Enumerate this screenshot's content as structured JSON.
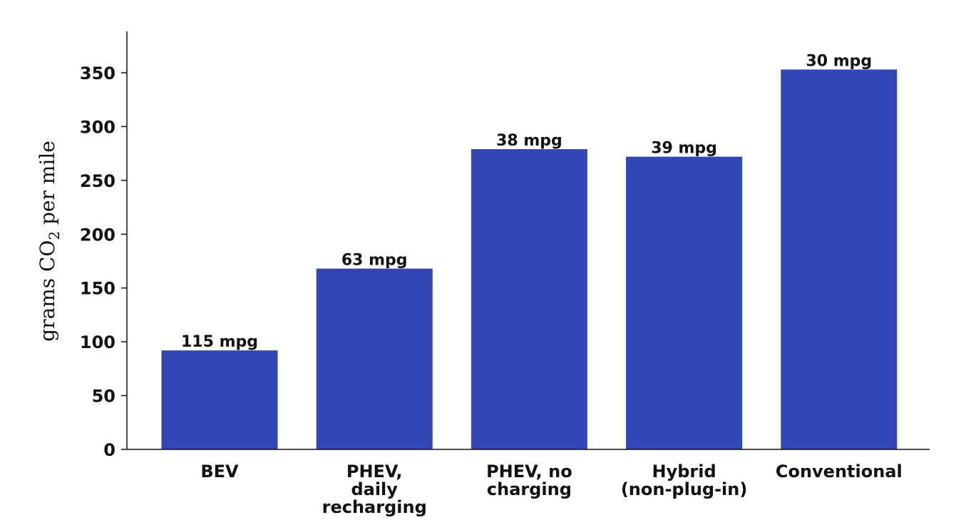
{
  "chart_data": {
    "type": "bar",
    "title": "",
    "xlabel": "",
    "ylabel": {
      "prefix": "grams CO",
      "subscript": "2",
      "suffix": " per mile"
    },
    "ylim": [
      0,
      385
    ],
    "yticks": [
      "0",
      "50",
      "100",
      "150",
      "200",
      "250",
      "300",
      "350"
    ],
    "grid": false,
    "categories": [
      [
        "BEV"
      ],
      [
        "PHEV,",
        "daily",
        "recharging"
      ],
      [
        "PHEV, no",
        "charging"
      ],
      [
        "Hybrid",
        "(non-plug-in)"
      ],
      [
        "Conventional"
      ]
    ],
    "values": [
      92,
      168,
      279,
      272,
      353
    ],
    "data_labels": [
      "115 mpg",
      "63 mpg",
      "38 mpg",
      "39 mpg",
      "30 mpg"
    ],
    "colors": {
      "bar": "#3246b5",
      "axis": "#111111"
    }
  }
}
